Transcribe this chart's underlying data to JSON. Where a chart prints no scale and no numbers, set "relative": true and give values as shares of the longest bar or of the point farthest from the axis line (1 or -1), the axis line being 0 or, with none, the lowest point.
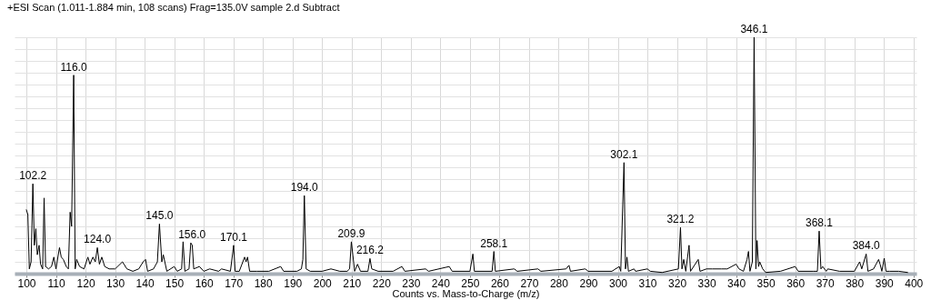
{
  "chart_data": {
    "type": "line",
    "title": "+ESI Scan (1.011-1.884 min, 108 scans) Frag=135.0V sample 2.d  Subtract",
    "xlabel": "Counts vs. Mass-to-Charge (m/z)",
    "relative": true,
    "xlim": [
      96,
      401
    ],
    "xticks": [
      100,
      110,
      120,
      130,
      140,
      150,
      160,
      170,
      180,
      190,
      200,
      210,
      220,
      230,
      240,
      250,
      260,
      270,
      280,
      290,
      300,
      310,
      320,
      330,
      340,
      350,
      360,
      370,
      380,
      390,
      400
    ],
    "grid": true,
    "legend": false,
    "marker": "none",
    "line_style": "solid",
    "series": [
      {
        "color": "#000000",
        "x": [
          100,
          100.5,
          101,
          101.6,
          102.2,
          102.7,
          103.2,
          103.7,
          104.3,
          104.8,
          105.5,
          106.0,
          106.5,
          107.5,
          108.5,
          109.3,
          110,
          111.2,
          111.8,
          112.5,
          113.5,
          114.2,
          114.8,
          115.3,
          116.0,
          116.5,
          117,
          118,
          119.5,
          120.8,
          121.5,
          122.5,
          123.3,
          124.0,
          124.7,
          125.5,
          126.5,
          128,
          130,
          132.5,
          134,
          136,
          138,
          139.5,
          140.3,
          141,
          143,
          144.3,
          145.0,
          145.8,
          146.3,
          147.5,
          150,
          151,
          152.5,
          153,
          153.6,
          155,
          155.6,
          156.1,
          156.6,
          158.5,
          160,
          162,
          165,
          166,
          169,
          170.1,
          170.6,
          172,
          173.8,
          174.3,
          174.8,
          175.5,
          178,
          182,
          186,
          187,
          191.5,
          193,
          193.5,
          194.0,
          194.6,
          196,
          200,
          203,
          206,
          208.5,
          209.3,
          209.9,
          210.4,
          211,
          212,
          213,
          215.5,
          216.2,
          216.8,
          219,
          224,
          227,
          228,
          235,
          236,
          243,
          244,
          250,
          251,
          251.5,
          257.5,
          258.1,
          258.6,
          265,
          266,
          273,
          274,
          282.5,
          283.5,
          284,
          289,
          290,
          298,
          300.5,
          301,
          301.7,
          302.1,
          302.6,
          303.1,
          303.6,
          305.5,
          306,
          310,
          311,
          315,
          320.5,
          321.2,
          321.7,
          322.3,
          323,
          324.1,
          324.6,
          327.2,
          327.8,
          330,
          332,
          335,
          337,
          340,
          341,
          342.5,
          343.7,
          344.2,
          344.7,
          345.5,
          346.1,
          346.7,
          347.1,
          347.6,
          348,
          349,
          350,
          355,
          360,
          361,
          366,
          367.5,
          368.1,
          368.7,
          369.3,
          370.5,
          371,
          375,
          380,
          381.8,
          382.5,
          384.0,
          384.6,
          386.5,
          388.2,
          388.7,
          389.3,
          390.1,
          390.7,
          392,
          395,
          398
        ],
        "values": [
          0.27,
          0.25,
          0.02,
          0.05,
          0.38,
          0.12,
          0.19,
          0.08,
          0.12,
          0.04,
          0.02,
          0.32,
          0.03,
          0.02,
          0.03,
          0.07,
          0.02,
          0.11,
          0.07,
          0.06,
          0.03,
          0.02,
          0.26,
          0.2,
          0.84,
          0.02,
          0.06,
          0.03,
          0.02,
          0.07,
          0.04,
          0.07,
          0.05,
          0.11,
          0.04,
          0.07,
          0.03,
          0.02,
          0.02,
          0.05,
          0.02,
          0.01,
          0.02,
          0.05,
          0.06,
          0.01,
          0.02,
          0.05,
          0.21,
          0.05,
          0.08,
          0.01,
          0.03,
          0.01,
          0.02,
          0.135,
          0.01,
          0.02,
          0.13,
          0.12,
          0.02,
          0.03,
          0.01,
          0.02,
          0.01,
          0.02,
          0.01,
          0.12,
          0.01,
          0.01,
          0.07,
          0.05,
          0.07,
          0.01,
          0.01,
          0.01,
          0.03,
          0.01,
          0.01,
          0.02,
          0.06,
          0.33,
          0.02,
          0.01,
          0.01,
          0.02,
          0.01,
          0.01,
          0.02,
          0.135,
          0.08,
          0.01,
          0.04,
          0.01,
          0.01,
          0.064,
          0.02,
          0.01,
          0.01,
          0.03,
          0.01,
          0.02,
          0.01,
          0.03,
          0.01,
          0.01,
          0.083,
          0.01,
          0.01,
          0.094,
          0.01,
          0.02,
          0.01,
          0.02,
          0.01,
          0.02,
          0.035,
          0.01,
          0.02,
          0.01,
          0.01,
          0.03,
          0.01,
          0.3,
          0.47,
          0.02,
          0.07,
          0.01,
          0.02,
          0.01,
          0.02,
          0.01,
          0.005,
          0.02,
          0.195,
          0.02,
          0.06,
          0.01,
          0.12,
          0.01,
          0.06,
          0.01,
          0.02,
          0.02,
          0.02,
          0.02,
          0.04,
          0.02,
          0.01,
          0.06,
          0.094,
          0.01,
          0.05,
          1.0,
          0.02,
          0.14,
          0.03,
          0.05,
          0.02,
          0.005,
          0.01,
          0.03,
          0.01,
          0.01,
          0.01,
          0.18,
          0.02,
          0.03,
          0.01,
          0.02,
          0.01,
          0.01,
          0.05,
          0.02,
          0.083,
          0.01,
          0.02,
          0.06,
          0.04,
          0.01,
          0.065,
          0.01,
          0.01,
          0.01,
          0.005
        ]
      }
    ],
    "annotations": [
      {
        "text": "102.2",
        "x": 102.2,
        "y": 0.38
      },
      {
        "text": "116.0",
        "x": 116.0,
        "y": 0.84
      },
      {
        "text": "124.0",
        "x": 124.0,
        "y": 0.11
      },
      {
        "text": "145.0",
        "x": 145.0,
        "y": 0.21
      },
      {
        "text": "156.0",
        "x": 156.0,
        "y": 0.13
      },
      {
        "text": "170.1",
        "x": 170.1,
        "y": 0.12
      },
      {
        "text": "194.0",
        "x": 194.0,
        "y": 0.33
      },
      {
        "text": "209.9",
        "x": 209.9,
        "y": 0.135
      },
      {
        "text": "216.2",
        "x": 216.2,
        "y": 0.064
      },
      {
        "text": "258.1",
        "x": 258.1,
        "y": 0.094
      },
      {
        "text": "302.1",
        "x": 302.1,
        "y": 0.47
      },
      {
        "text": "321.2",
        "x": 321.2,
        "y": 0.195
      },
      {
        "text": "346.1",
        "x": 346.1,
        "y": 1.0
      },
      {
        "text": "368.1",
        "x": 368.1,
        "y": 0.18
      },
      {
        "text": "384.0",
        "x": 384.0,
        "y": 0.083
      }
    ]
  }
}
